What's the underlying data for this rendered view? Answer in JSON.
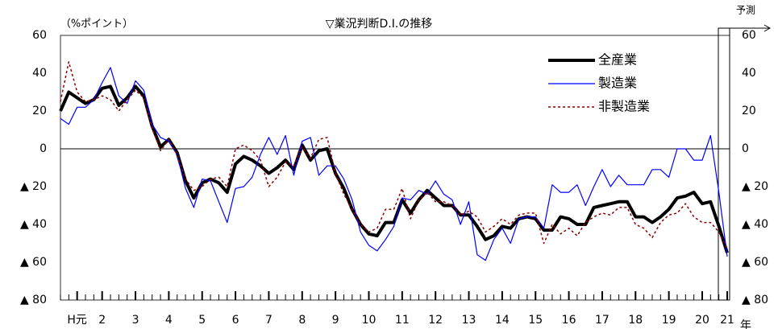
{
  "chart_data": {
    "type": "line",
    "title": "▽業況判断D.I.の推移",
    "y_label": "（%ポイント）",
    "forecast_label": "予測",
    "x_unit": "年",
    "categories": [
      null,
      null,
      "H元",
      null,
      null,
      "2",
      null,
      null,
      null,
      "3",
      null,
      null,
      null,
      "4",
      null,
      null,
      null,
      "5",
      null,
      null,
      null,
      "6",
      null,
      null,
      null,
      "7",
      null,
      null,
      null,
      "8",
      null,
      null,
      null,
      "9",
      null,
      null,
      null,
      "10",
      null,
      null,
      null,
      "11",
      null,
      null,
      null,
      "12",
      null,
      null,
      null,
      "13",
      null,
      null,
      null,
      "14",
      null,
      null,
      null,
      "15",
      null,
      null,
      null,
      "16",
      null,
      null,
      null,
      "17",
      null,
      null,
      null,
      "18",
      null,
      null,
      null,
      "19",
      null,
      null,
      null,
      "20",
      null,
      null,
      "21"
    ],
    "series": [
      {
        "name": "全産業",
        "color": "#000000",
        "values": [
          20,
          30,
          27,
          24,
          26,
          32,
          33,
          23,
          27,
          33,
          28,
          12,
          1,
          5,
          -2,
          -17,
          -26,
          -18,
          -16,
          -18,
          -23,
          -8,
          -4,
          -6,
          -9,
          -13,
          -10,
          -6,
          -11,
          2,
          -6,
          -1,
          0,
          -13,
          -21,
          -32,
          -40,
          -45,
          -46,
          -39,
          -39,
          -27,
          -34,
          -27,
          -22,
          -26,
          -30,
          -30,
          -35,
          -35,
          -41,
          -48,
          -46,
          -41,
          -42,
          -37,
          -36,
          -37,
          -43,
          -43,
          -36,
          -37,
          -40,
          -40,
          -31,
          -30,
          -29,
          -28,
          -28,
          -36,
          -36,
          -39,
          -36,
          -32,
          -26,
          -25,
          -23,
          -29,
          -28,
          -41,
          -55
        ]
      },
      {
        "name": "製造業",
        "color": "#0000ff",
        "values": [
          16,
          13,
          22,
          22,
          26,
          35,
          43,
          28,
          24,
          36,
          31,
          13,
          6,
          4,
          -3,
          -21,
          -31,
          -16,
          -17,
          -28,
          -39,
          -21,
          -20,
          -15,
          -3,
          6,
          -3,
          7,
          -14,
          4,
          6,
          -14,
          -9,
          -9,
          -16,
          -27,
          -44,
          -51,
          -54,
          -48,
          -41,
          -26,
          -27,
          -22,
          -24,
          -17,
          -24,
          -27,
          -40,
          -28,
          -56,
          -59,
          -48,
          -42,
          -50,
          -37,
          -36,
          -36,
          -42,
          -19,
          -23,
          -23,
          -19,
          -30,
          -20,
          -11,
          -20,
          -14,
          -19,
          -19,
          -19,
          -11,
          -11,
          -15,
          0,
          0,
          -6,
          -6,
          7,
          -23,
          -57
        ]
      },
      {
        "name": "非製造業",
        "color": "#8b0000",
        "values": [
          25,
          46,
          30,
          25,
          26,
          28,
          26,
          20,
          26,
          31,
          27,
          11,
          -1,
          5,
          -3,
          -16,
          -22,
          -20,
          -16,
          -15,
          -20,
          0,
          2,
          -1,
          -6,
          -20,
          -15,
          -7,
          -9,
          1,
          -5,
          5,
          6,
          -13,
          -24,
          -32,
          -40,
          -44,
          -42,
          -32,
          -32,
          -21,
          -37,
          -27,
          -23,
          -28,
          -28,
          -30,
          -35,
          -33,
          -36,
          -44,
          -41,
          -37,
          -40,
          -35,
          -34,
          -34,
          -50,
          -40,
          -45,
          -42,
          -46,
          -39,
          -36,
          -34,
          -35,
          -31,
          -31,
          -40,
          -42,
          -47,
          -39,
          -35,
          -34,
          -29,
          -36,
          -39,
          -39,
          -44,
          -53
        ]
      }
    ],
    "ylim": [
      -80,
      60
    ],
    "yticks": [
      60,
      40,
      20,
      0,
      {
        "value": -20,
        "label": "▲ 20"
      },
      {
        "value": -40,
        "label": "▲ 40"
      },
      {
        "value": -60,
        "label": "▲ 60"
      },
      {
        "value": -80,
        "label": "▲ 80"
      }
    ],
    "legend": "upper right"
  }
}
